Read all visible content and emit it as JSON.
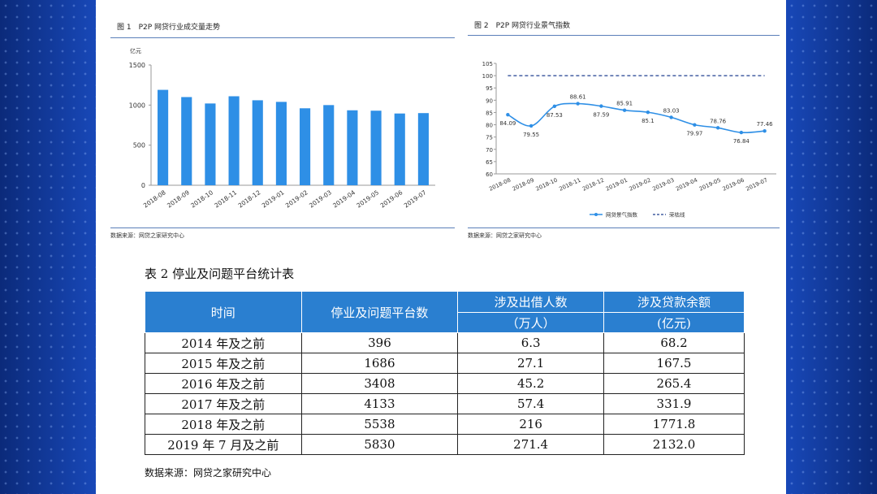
{
  "chart_data": [
    {
      "type": "bar",
      "title": "图 1　P2P 网贷行业成交量走势",
      "ylabel": "亿元",
      "categories": [
        "2018-08",
        "2018-09",
        "2018-10",
        "2018-11",
        "2018-12",
        "2019-01",
        "2019-02",
        "2019-03",
        "2019-04",
        "2019-05",
        "2019-06",
        "2019-07"
      ],
      "values": [
        1190,
        1100,
        1020,
        1110,
        1060,
        1040,
        960,
        1000,
        935,
        930,
        895,
        900
      ],
      "yticks": [
        "0",
        "500",
        "1000",
        "1500"
      ],
      "ylim": [
        0,
        1500
      ],
      "color": "#2e8fe6",
      "source": "数据来源：网贷之家研究中心"
    },
    {
      "type": "line",
      "title": "图 2　P2P 网贷行业景气指数",
      "categories": [
        "2018-08",
        "2018-09",
        "2018-10",
        "2018-11",
        "2018-12",
        "2019-01",
        "2019-02",
        "2019-03",
        "2019-04",
        "2019-05",
        "2019-06",
        "2019-07"
      ],
      "series": [
        {
          "name": "网贷景气指数",
          "values": [
            84.09,
            79.55,
            87.53,
            88.61,
            87.59,
            85.91,
            85.1,
            83.03,
            79.97,
            78.76,
            76.84,
            77.46
          ],
          "labels": [
            "84.09",
            "79.55",
            "87.53",
            "88.61",
            "87.59",
            "85.91",
            "85.1",
            "83.03",
            "79.97",
            "78.76",
            "76.84",
            "77.46"
          ],
          "color": "#2e8fe6"
        },
        {
          "name": "荣枯线",
          "value": 100,
          "style": "dashed",
          "color": "#1f3f8f"
        }
      ],
      "yticks": [
        "60",
        "65",
        "70",
        "75",
        "80",
        "85",
        "90",
        "95",
        "100",
        "105"
      ],
      "ylim": [
        60,
        105
      ],
      "source": "数据来源：网贷之家研究中心"
    },
    {
      "type": "table",
      "title": "表 2 停业及问题平台统计表",
      "headers": {
        "time": "时间",
        "platforms": "停业及问题平台数",
        "lenders": "涉及出借人数",
        "lenders_unit": "（万人）",
        "balance": "涉及贷款余额",
        "balance_unit": "(亿元)"
      },
      "rows": [
        {
          "period": "2014 年及之前",
          "platforms": "396",
          "lenders": "6.3",
          "balance": "68.2"
        },
        {
          "period": "2015 年及之前",
          "platforms": "1686",
          "lenders": "27.1",
          "balance": "167.5"
        },
        {
          "period": "2016 年及之前",
          "platforms": "3408",
          "lenders": "45.2",
          "balance": "265.4"
        },
        {
          "period": "2017 年及之前",
          "platforms": "4133",
          "lenders": "57.4",
          "balance": "331.9"
        },
        {
          "period": "2018 年及之前",
          "platforms": "5538",
          "lenders": "216",
          "balance": "1771.8"
        },
        {
          "period": "2019 年 7 月及之前",
          "platforms": "5830",
          "lenders": "271.4",
          "balance": "2132.0"
        }
      ],
      "source": "数据来源：网贷之家研究中心",
      "header_color": "#2a7fd0"
    }
  ]
}
